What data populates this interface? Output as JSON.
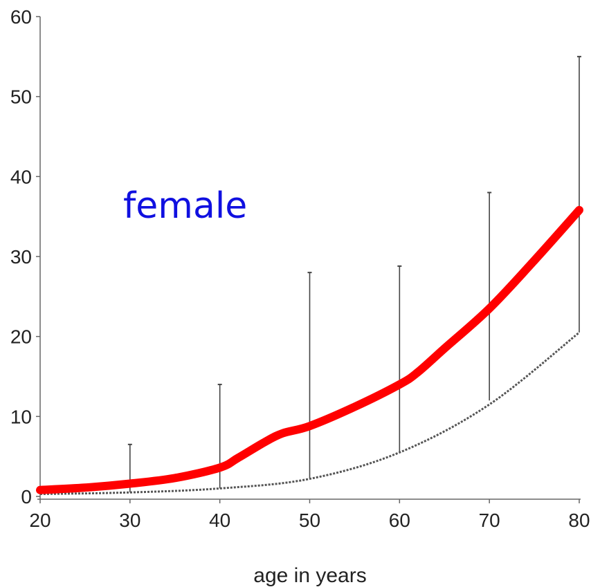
{
  "chart_data": {
    "type": "line",
    "title": "",
    "xlabel": "age in years",
    "ylabel": "",
    "xlim": [
      20,
      80
    ],
    "ylim": [
      0,
      60
    ],
    "xticks": [
      20,
      30,
      40,
      50,
      60,
      70,
      80
    ],
    "yticks": [
      0,
      10,
      20,
      30,
      40,
      50,
      60
    ],
    "grid": false,
    "annotations": [
      {
        "text": "female",
        "color": "#1010e0"
      }
    ],
    "series": [
      {
        "style": "solid",
        "color": "#ff0000",
        "x": [
          20,
          25,
          30,
          35,
          40,
          42,
          45,
          47,
          50,
          55,
          60,
          62,
          65,
          70,
          75,
          80
        ],
        "y": [
          0.8,
          1.1,
          1.6,
          2.3,
          3.6,
          4.8,
          6.8,
          7.9,
          8.8,
          11.2,
          14.0,
          15.5,
          18.5,
          23.5,
          29.5,
          35.8
        ]
      },
      {
        "style": "dashed",
        "color": "#555555",
        "x": [
          20,
          30,
          40,
          50,
          60,
          70,
          80
        ],
        "y": [
          0.3,
          0.5,
          1.0,
          2.2,
          5.5,
          11.5,
          20.5
        ]
      }
    ],
    "error_bars": [
      {
        "x": 30,
        "low": 0.5,
        "high": 6.5
      },
      {
        "x": 40,
        "low": 1.0,
        "high": 14.0
      },
      {
        "x": 50,
        "low": 2.2,
        "high": 28.0
      },
      {
        "x": 60,
        "low": 5.5,
        "high": 28.8
      },
      {
        "x": 70,
        "low": 12.0,
        "high": 38.0
      },
      {
        "x": 80,
        "low": 20.5,
        "high": 55.0
      }
    ]
  }
}
